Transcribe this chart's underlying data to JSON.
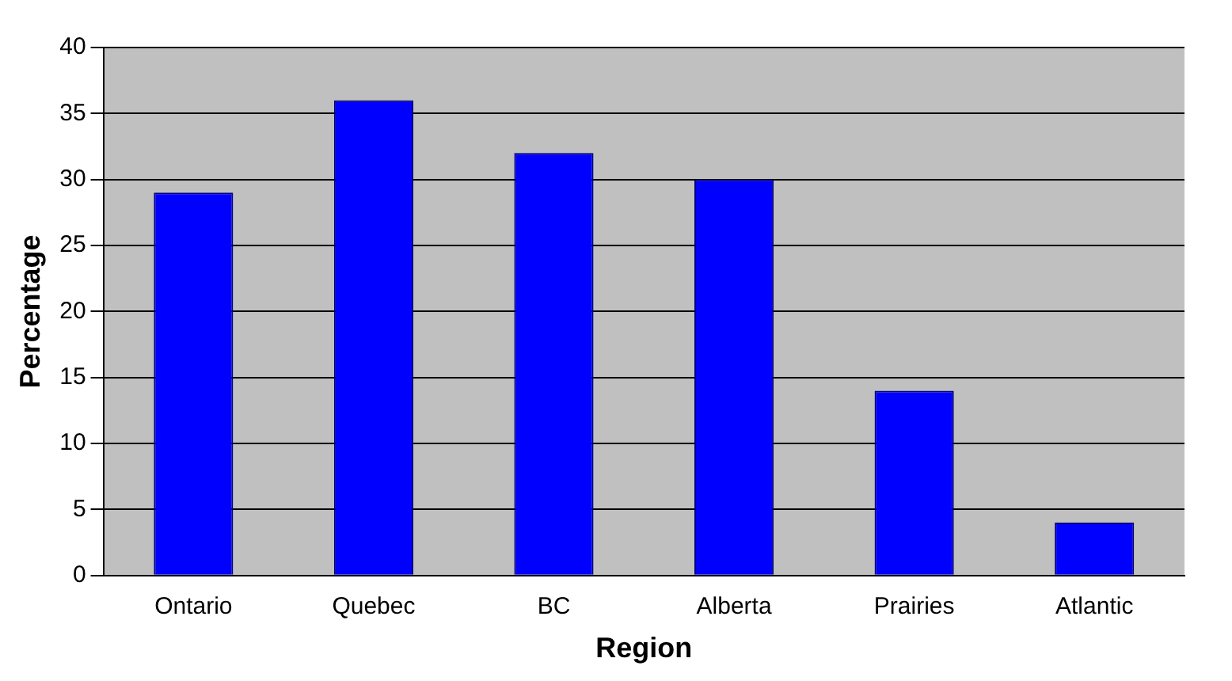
{
  "chart_data": {
    "type": "bar",
    "xlabel": "Region",
    "ylabel": "Percentage",
    "categories": [
      "Ontario",
      "Quebec",
      "BC",
      "Alberta",
      "Prairies",
      "Atlantic"
    ],
    "values": [
      29,
      36,
      32,
      30,
      14,
      4
    ],
    "color": "#0000ff",
    "ylim": [
      0,
      40
    ],
    "yticks": [
      0,
      5,
      10,
      15,
      20,
      25,
      30,
      35,
      40
    ],
    "grid": "y",
    "legend": false
  }
}
